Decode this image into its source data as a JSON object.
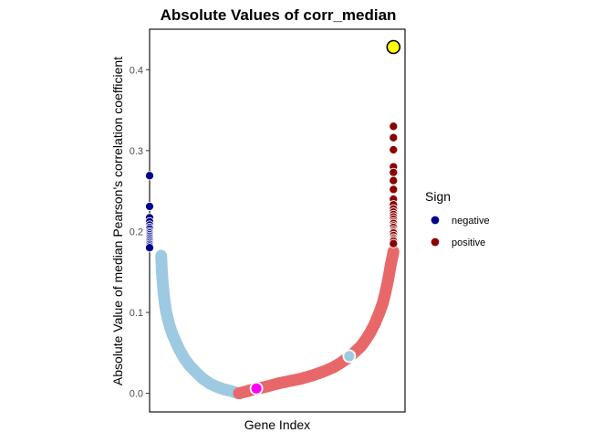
{
  "chart_data": {
    "type": "scatter",
    "title": "Absolute Values of corr_median",
    "xlabel": "Gene Index",
    "ylabel": "Absolute Value of median Pearson's correlation coefficient",
    "ylim": [
      -0.023,
      0.45
    ],
    "xlim": [
      -0.05,
      1.05
    ],
    "x_axis_scale": "normalized gene order (no tick labels shown)",
    "y_ticks": [
      0.0,
      0.1,
      0.2,
      0.3,
      0.4
    ],
    "y_tick_labels": [
      "0.0",
      "0.1",
      "0.2",
      "0.3",
      "0.4"
    ],
    "grid": false,
    "panel_border": true,
    "legend": {
      "title": "Sign",
      "position": "right",
      "items": [
        {
          "label": "negative",
          "color": "#00008B"
        },
        {
          "label": "positive",
          "color": "#8B0000"
        }
      ]
    },
    "series": [
      {
        "name": "negative",
        "color_significant": "#00008B",
        "color_background": "#9ECAE1",
        "curve": {
          "x": [
            0.0,
            0.003,
            0.006,
            0.01,
            0.015,
            0.02,
            0.03,
            0.04,
            0.05,
            0.065,
            0.08,
            0.1,
            0.12,
            0.15,
            0.18,
            0.21,
            0.24,
            0.27,
            0.3,
            0.32,
            0.335
          ],
          "y": [
            0.17,
            0.15,
            0.138,
            0.125,
            0.113,
            0.103,
            0.09,
            0.08,
            0.072,
            0.062,
            0.053,
            0.043,
            0.035,
            0.026,
            0.018,
            0.012,
            0.008,
            0.005,
            0.003,
            0.001,
            0.0
          ]
        },
        "highlighted_points": {
          "y": [
            0.269,
            0.231,
            0.217,
            0.212,
            0.208,
            0.205,
            0.203,
            0.2,
            0.198,
            0.196,
            0.194,
            0.192,
            0.19,
            0.188,
            0.186,
            0.184,
            0.182,
            0.18
          ]
        }
      },
      {
        "name": "positive",
        "color_significant": "#8B0000",
        "color_background": "#E8686A",
        "curve": {
          "x": [
            0.335,
            0.35,
            0.4,
            0.45,
            0.5,
            0.55,
            0.6,
            0.65,
            0.7,
            0.74,
            0.77,
            0.8,
            0.83,
            0.86,
            0.88,
            0.9,
            0.92,
            0.94,
            0.955,
            0.965,
            0.975,
            0.982,
            0.988,
            0.993,
            0.997,
            1.0
          ],
          "y": [
            0.0,
            0.001,
            0.005,
            0.008,
            0.012,
            0.015,
            0.018,
            0.022,
            0.027,
            0.032,
            0.037,
            0.043,
            0.05,
            0.058,
            0.066,
            0.075,
            0.086,
            0.1,
            0.112,
            0.124,
            0.137,
            0.148,
            0.158,
            0.165,
            0.17,
            0.175
          ]
        },
        "highlighted_points": {
          "y": [
            0.33,
            0.316,
            0.301,
            0.28,
            0.273,
            0.263,
            0.252,
            0.24,
            0.233,
            0.228,
            0.224,
            0.221,
            0.218,
            0.215,
            0.212,
            0.21,
            0.207,
            0.205,
            0.202,
            0.2,
            0.198,
            0.195,
            0.192,
            0.19,
            0.188,
            0.185
          ]
        }
      }
    ],
    "special_points": [
      {
        "name": "max",
        "x": 1.0,
        "y": 0.428,
        "color": "#FFFF00"
      },
      {
        "name": "median-negative-sample",
        "x": 0.41,
        "y": 0.006,
        "color": "#FF00FF"
      },
      {
        "name": "sample-marker",
        "x": 0.81,
        "y": 0.046,
        "color": "#9ECAE1"
      }
    ]
  }
}
